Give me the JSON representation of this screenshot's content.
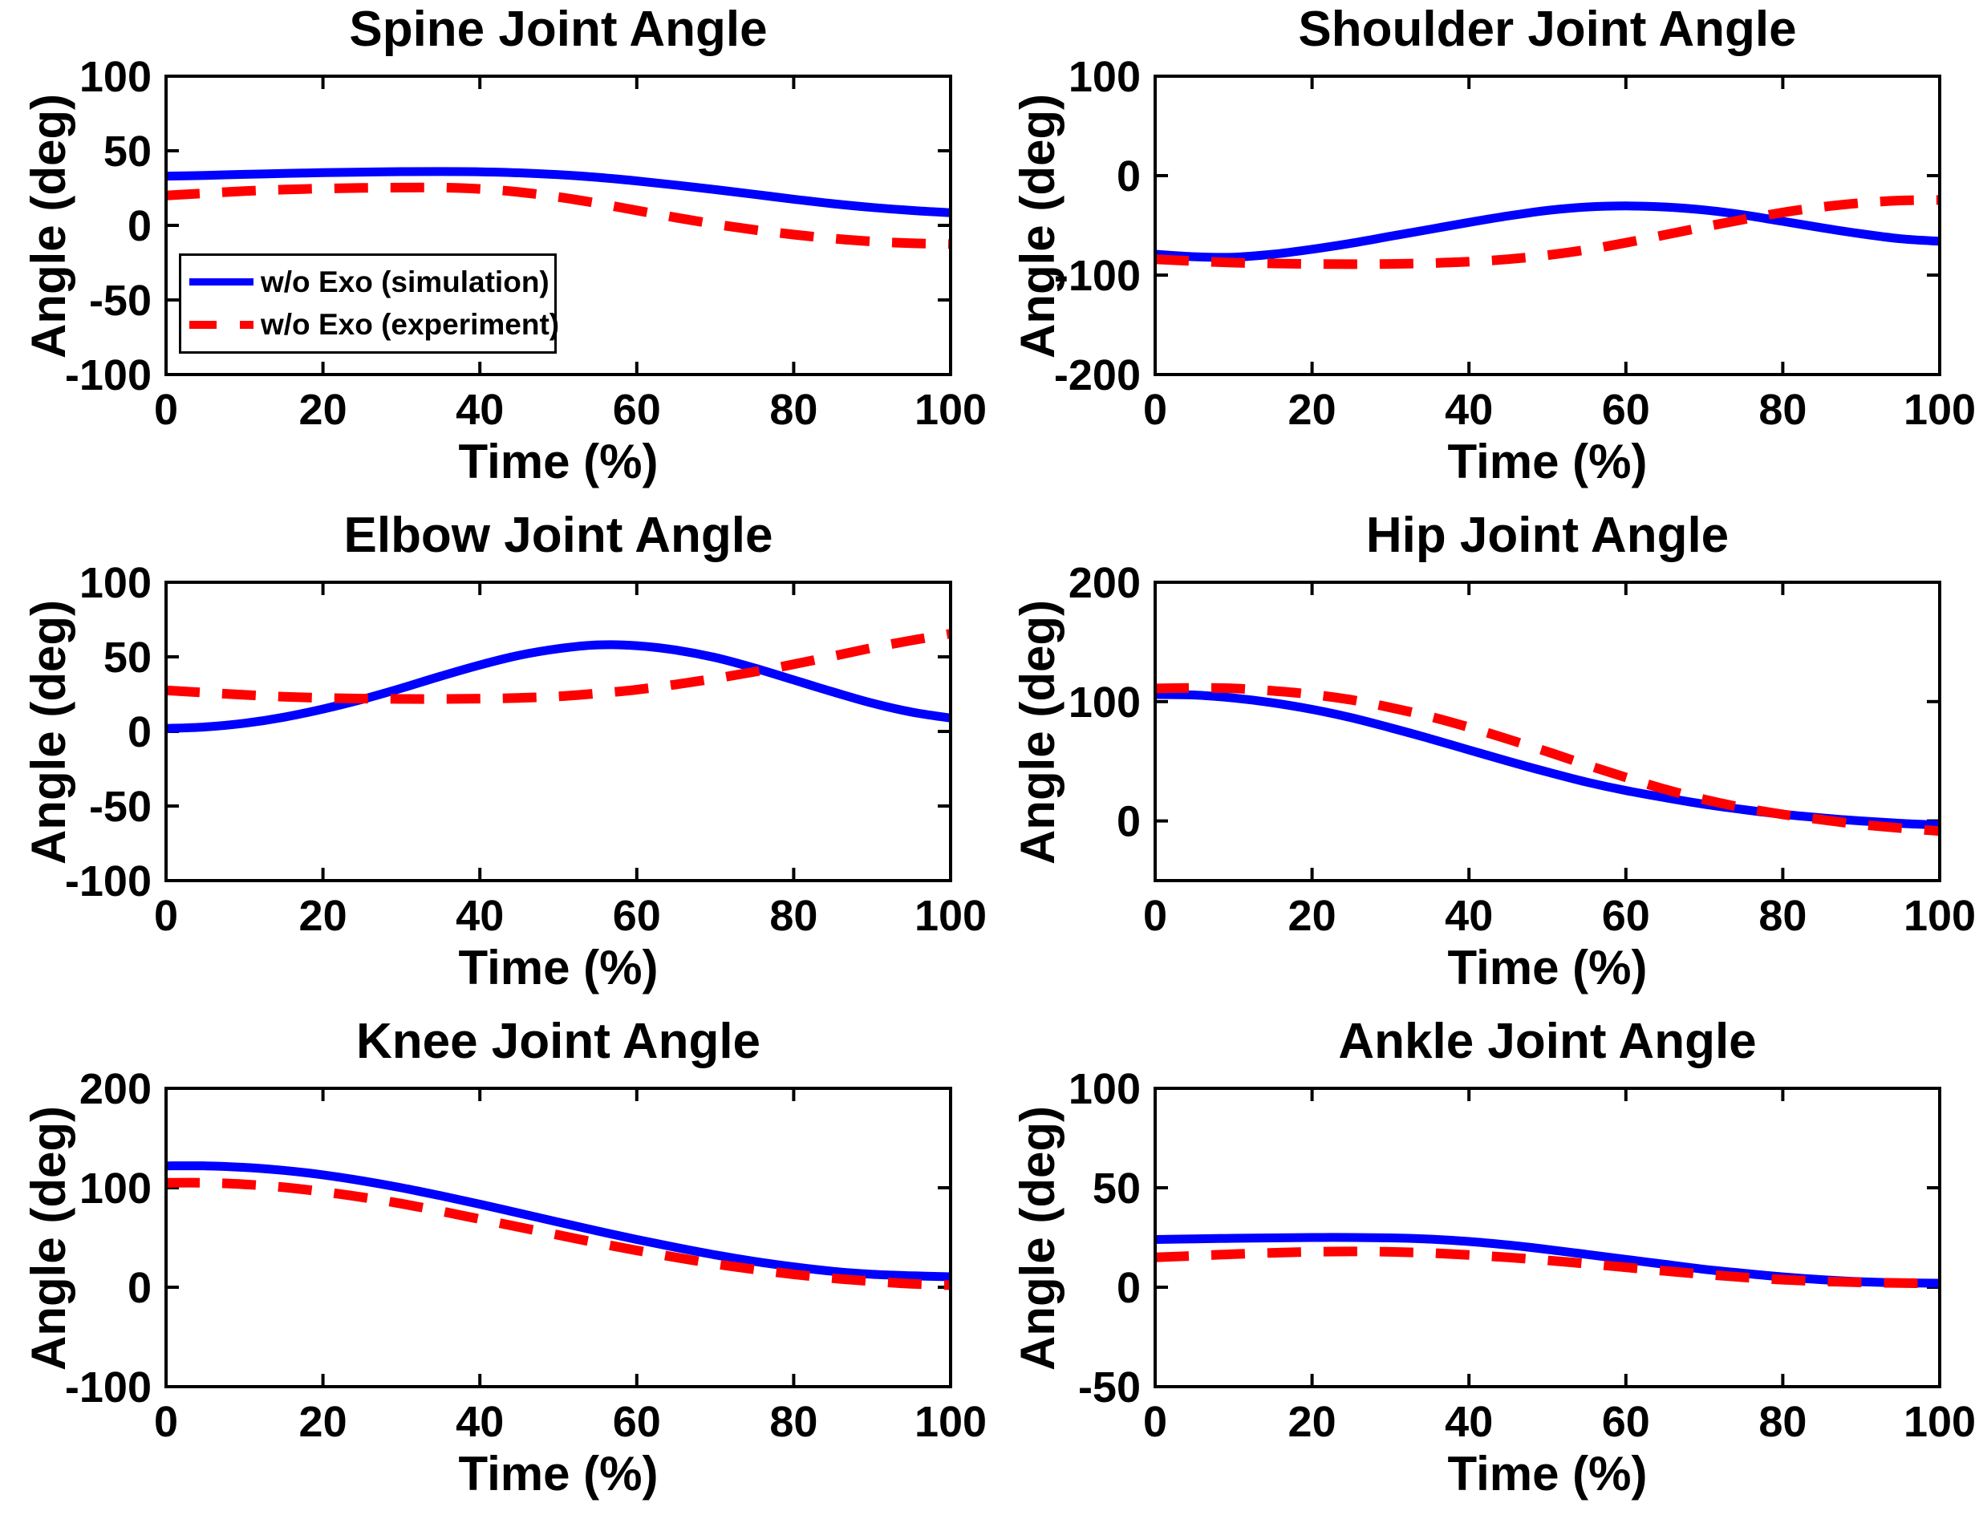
{
  "figure": {
    "background": "#ffffff",
    "colors": {
      "simulation": "#0000ff",
      "experiment": "#ff0000",
      "axis": "#000000",
      "text": "#000000"
    }
  },
  "legend": {
    "entries": [
      {
        "label": "w/o Exo (simulation)",
        "series": "simulation",
        "style": "solid",
        "color": "#0000ff"
      },
      {
        "label": "w/o Exo (experiment)",
        "series": "experiment",
        "style": "dashed",
        "color": "#ff0000"
      }
    ],
    "position": "southwest",
    "shown_on": "Spine Joint Angle"
  },
  "chart_data": [
    {
      "type": "line",
      "title": "Spine Joint Angle",
      "xlabel": "Time (%)",
      "ylabel": "Angle (deg)",
      "xlim": [
        0,
        100
      ],
      "ylim": [
        -100,
        100
      ],
      "xticks": [
        0,
        20,
        40,
        60,
        80,
        100
      ],
      "yticks": [
        -100,
        -50,
        0,
        50,
        100
      ],
      "grid": false,
      "legend": true,
      "x": [
        0,
        5,
        10,
        15,
        20,
        25,
        30,
        35,
        40,
        45,
        50,
        55,
        60,
        65,
        70,
        75,
        80,
        85,
        90,
        95,
        100
      ],
      "series": [
        {
          "name": "w/o Exo (simulation)",
          "color": "#0000ff",
          "style": "solid",
          "values": [
            33,
            33.5,
            34.2,
            34.8,
            35.3,
            35.7,
            36,
            36.1,
            35.9,
            35.2,
            34,
            32.2,
            29.8,
            27,
            24,
            20.8,
            17.5,
            14.5,
            12,
            10,
            8.5
          ]
        },
        {
          "name": "w/o Exo (experiment)",
          "color": "#ff0000",
          "style": "dashed",
          "values": [
            20,
            21.5,
            23,
            24,
            24.7,
            25.1,
            25.3,
            25.3,
            24.4,
            22.3,
            19,
            14.8,
            10,
            5.2,
            0.8,
            -3,
            -6.2,
            -8.8,
            -10.8,
            -12,
            -12.5
          ]
        }
      ]
    },
    {
      "type": "line",
      "title": "Shoulder Joint Angle",
      "xlabel": "Time (%)",
      "ylabel": "Angle (deg)",
      "xlim": [
        0,
        100
      ],
      "ylim": [
        -200,
        100
      ],
      "xticks": [
        0,
        20,
        40,
        60,
        80,
        100
      ],
      "yticks": [
        -200,
        -100,
        0,
        100
      ],
      "grid": false,
      "legend": false,
      "x": [
        0,
        5,
        10,
        15,
        20,
        25,
        30,
        35,
        40,
        45,
        50,
        55,
        60,
        65,
        70,
        75,
        80,
        85,
        90,
        95,
        100
      ],
      "series": [
        {
          "name": "w/o Exo (simulation)",
          "color": "#0000ff",
          "style": "solid",
          "values": [
            -79,
            -81.5,
            -82,
            -79,
            -74,
            -68,
            -61,
            -54,
            -47,
            -40.5,
            -35,
            -31.5,
            -30.5,
            -31.5,
            -34.5,
            -39.5,
            -46,
            -52.5,
            -58.5,
            -63.5,
            -66
          ]
        },
        {
          "name": "w/o Exo (experiment)",
          "color": "#ff0000",
          "style": "dashed",
          "values": [
            -84,
            -86,
            -87.5,
            -88.3,
            -88.8,
            -89,
            -88.8,
            -88,
            -86.5,
            -84,
            -80,
            -74.5,
            -67.5,
            -59.5,
            -51.5,
            -44,
            -37,
            -31.5,
            -27.5,
            -25,
            -24.5
          ]
        }
      ]
    },
    {
      "type": "line",
      "title": "Elbow Joint Angle",
      "xlabel": "Time (%)",
      "ylabel": "Angle (deg)",
      "xlim": [
        0,
        100
      ],
      "ylim": [
        -100,
        100
      ],
      "xticks": [
        0,
        20,
        40,
        60,
        80,
        100
      ],
      "yticks": [
        -100,
        -50,
        0,
        50,
        100
      ],
      "grid": false,
      "legend": false,
      "x": [
        0,
        5,
        10,
        15,
        20,
        25,
        30,
        35,
        40,
        45,
        50,
        55,
        60,
        65,
        70,
        75,
        80,
        85,
        90,
        95,
        100
      ],
      "series": [
        {
          "name": "w/o Exo (simulation)",
          "color": "#0000ff",
          "style": "solid",
          "values": [
            2,
            3,
            5.5,
            9.5,
            15,
            21.5,
            29,
            37,
            44.5,
            51,
            55.5,
            58,
            57.5,
            54.5,
            49.5,
            42.5,
            34.5,
            26.5,
            19,
            13,
            9
          ]
        },
        {
          "name": "w/o Exo (experiment)",
          "color": "#ff0000",
          "style": "dashed",
          "values": [
            27.5,
            26,
            24.5,
            23.3,
            22.5,
            22,
            21.8,
            21.8,
            22,
            22.5,
            23.5,
            25.5,
            28,
            31.5,
            35.5,
            40,
            45,
            50.5,
            56,
            61,
            65.5
          ]
        }
      ]
    },
    {
      "type": "line",
      "title": "Hip Joint Angle",
      "xlabel": "Time (%)",
      "ylabel": "Angle (deg)",
      "xlim": [
        0,
        100
      ],
      "ylim": [
        -50,
        200
      ],
      "xticks": [
        0,
        20,
        40,
        60,
        80,
        100
      ],
      "yticks": [
        0,
        100,
        200
      ],
      "grid": false,
      "legend": false,
      "x": [
        0,
        5,
        10,
        15,
        20,
        25,
        30,
        35,
        40,
        45,
        50,
        55,
        60,
        65,
        70,
        75,
        80,
        85,
        90,
        95,
        100
      ],
      "series": [
        {
          "name": "w/o Exo (simulation)",
          "color": "#0000ff",
          "style": "solid",
          "values": [
            106,
            105.5,
            103,
            99,
            93.5,
            86.5,
            78,
            69,
            59.5,
            50,
            41,
            32.5,
            25.5,
            19.5,
            14,
            9.5,
            5.5,
            2.5,
            0,
            -2,
            -3.5
          ]
        },
        {
          "name": "w/o Exo (experiment)",
          "color": "#ff0000",
          "style": "dashed",
          "values": [
            111,
            111.5,
            111,
            109,
            106,
            101.5,
            95,
            87.5,
            78.5,
            68.5,
            58,
            47,
            36.5,
            26.5,
            18,
            11,
            5.5,
            1,
            -3,
            -6,
            -8.5
          ]
        }
      ]
    },
    {
      "type": "line",
      "title": "Knee Joint Angle",
      "xlabel": "Time (%)",
      "ylabel": "Angle (deg)",
      "xlim": [
        0,
        100
      ],
      "ylim": [
        -100,
        200
      ],
      "xticks": [
        0,
        20,
        40,
        60,
        80,
        100
      ],
      "yticks": [
        -100,
        0,
        100,
        200
      ],
      "grid": false,
      "legend": false,
      "x": [
        0,
        5,
        10,
        15,
        20,
        25,
        30,
        35,
        40,
        45,
        50,
        55,
        60,
        65,
        70,
        75,
        80,
        85,
        90,
        95,
        100
      ],
      "series": [
        {
          "name": "w/o Exo (simulation)",
          "color": "#0000ff",
          "style": "solid",
          "values": [
            122,
            122,
            120.5,
            117.5,
            113,
            107,
            100,
            92,
            83.5,
            74.5,
            65.5,
            56.5,
            48,
            40,
            32.5,
            26,
            20.5,
            16,
            13,
            11.5,
            10.5
          ]
        },
        {
          "name": "w/o Exo (experiment)",
          "color": "#ff0000",
          "style": "dashed",
          "values": [
            105,
            105,
            103.5,
            100.5,
            96,
            90.5,
            84,
            76.5,
            68.5,
            60.5,
            52.5,
            44.5,
            37,
            30,
            23.5,
            18,
            13,
            9,
            6,
            3.5,
            2
          ]
        }
      ]
    },
    {
      "type": "line",
      "title": "Ankle Joint Angle",
      "xlabel": "Time (%)",
      "ylabel": "Angle (deg)",
      "xlim": [
        0,
        100
      ],
      "ylim": [
        -50,
        100
      ],
      "xticks": [
        0,
        20,
        40,
        60,
        80,
        100
      ],
      "yticks": [
        -50,
        0,
        50,
        100
      ],
      "grid": false,
      "legend": false,
      "x": [
        0,
        5,
        10,
        15,
        20,
        25,
        30,
        35,
        40,
        45,
        50,
        55,
        60,
        65,
        70,
        75,
        80,
        85,
        90,
        95,
        100
      ],
      "series": [
        {
          "name": "w/o Exo (simulation)",
          "color": "#0000ff",
          "style": "solid",
          "values": [
            24,
            24.3,
            24.6,
            24.8,
            25,
            25,
            24.8,
            24.2,
            23,
            21.2,
            19,
            16.5,
            14,
            11.5,
            9,
            7,
            5.2,
            3.8,
            2.8,
            2.2,
            2
          ]
        },
        {
          "name": "w/o Exo (experiment)",
          "color": "#ff0000",
          "style": "dashed",
          "values": [
            15,
            15.8,
            16.6,
            17.3,
            17.8,
            18,
            17.8,
            17.2,
            16.2,
            15,
            13.5,
            11.8,
            10,
            8.2,
            6.5,
            5,
            3.8,
            3,
            2.4,
            2.1,
            2
          ]
        }
      ]
    }
  ]
}
